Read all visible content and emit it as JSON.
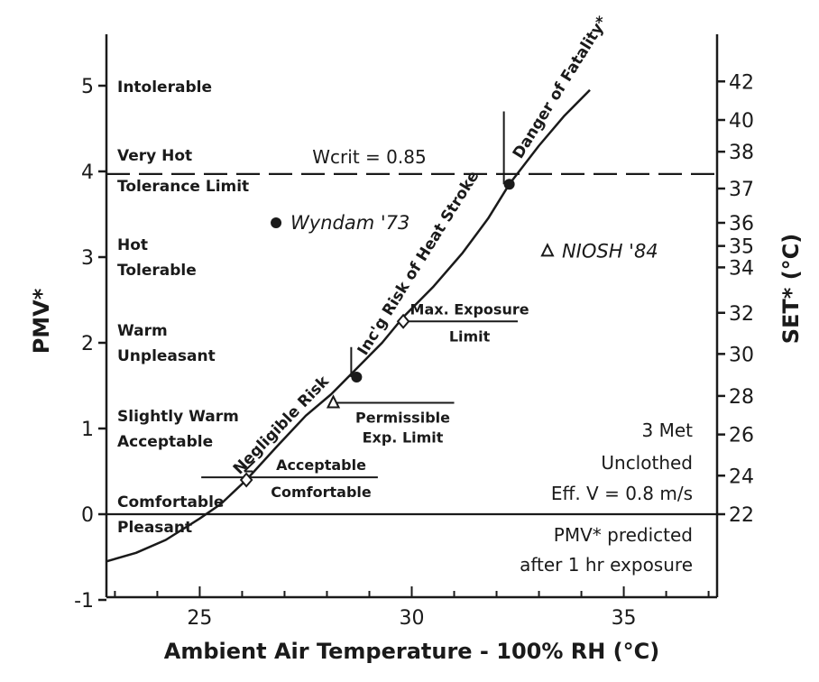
{
  "chart_data": {
    "type": "line",
    "xlabel": "Ambient Air Temperature - 100% RH (°C)",
    "ylabel": "PMV*",
    "y2label": "SET* (°C)",
    "xlim": [
      22.8,
      37.2
    ],
    "ylim": [
      -1,
      5.5
    ],
    "x_ticks": [
      25,
      30,
      35
    ],
    "y_ticks": [
      -1,
      0,
      1,
      2,
      3,
      4,
      5
    ],
    "y2_ticks": [
      {
        "label": "22",
        "pmv": 0.0
      },
      {
        "label": "24",
        "pmv": 0.45
      },
      {
        "label": "26",
        "pmv": 0.93
      },
      {
        "label": "28",
        "pmv": 1.38
      },
      {
        "label": "30",
        "pmv": 1.87
      },
      {
        "label": "32",
        "pmv": 2.35
      },
      {
        "label": "34",
        "pmv": 2.88
      },
      {
        "label": "35",
        "pmv": 3.13
      },
      {
        "label": "36",
        "pmv": 3.4
      },
      {
        "label": "37",
        "pmv": 3.8
      },
      {
        "label": "38",
        "pmv": 4.23
      },
      {
        "label": "40",
        "pmv": 4.6
      },
      {
        "label": "42",
        "pmv": 5.05
      }
    ],
    "series": [
      {
        "x": [
          22.8,
          23.5,
          24.2,
          25.0,
          25.5,
          26.1,
          26.8,
          27.5,
          28.1,
          28.7,
          29.3,
          29.8,
          30.5,
          31.2,
          31.8,
          32.3,
          33.0,
          33.6,
          34.2
        ],
        "y": [
          -0.55,
          -0.45,
          -0.3,
          -0.05,
          0.12,
          0.4,
          0.78,
          1.15,
          1.4,
          1.7,
          2.0,
          2.3,
          2.65,
          3.05,
          3.45,
          3.85,
          4.3,
          4.65,
          4.95
        ]
      }
    ],
    "hlines": [
      {
        "y": 0,
        "style": "solid"
      },
      {
        "y": 3.97,
        "style": "dashed",
        "label": "Wcrit = 0.85"
      }
    ],
    "markers": [
      {
        "x": 28.7,
        "y": 1.6,
        "shape": "filled-circle"
      },
      {
        "x": 32.3,
        "y": 3.85,
        "shape": "filled-circle"
      },
      {
        "x": 26.1,
        "y": 0.4,
        "shape": "open-diamond"
      },
      {
        "x": 28.15,
        "y": 1.3,
        "shape": "open-triangle"
      },
      {
        "x": 29.8,
        "y": 2.25,
        "shape": "open-diamond"
      },
      {
        "x": 26.8,
        "y": 3.4,
        "shape": "filled-circle",
        "label": "Wyndam '73"
      },
      {
        "x": 33.2,
        "y": 3.07,
        "shape": "open-triangle",
        "label": "NIOSH '84"
      }
    ],
    "limit_lines": [
      {
        "x1": 26.1,
        "x2": 29.2,
        "y": 0.43,
        "label_top": "Acceptable",
        "label_bottom": "Comfortable"
      },
      {
        "x1": 28.15,
        "x2": 31.0,
        "y": 1.3,
        "label": "Permissible Exp. Limit"
      },
      {
        "x1": 29.8,
        "x2": 32.5,
        "y": 2.25,
        "label_top": "Max. Exposure",
        "label_bottom": "Limit"
      }
    ],
    "zones": [
      {
        "y": 5,
        "lines": [
          "Intolerable"
        ]
      },
      {
        "y": 4,
        "lines": [
          "Very Hot",
          "Tolerance Limit"
        ]
      },
      {
        "y": 3,
        "lines": [
          "Hot",
          "Tolerable"
        ]
      },
      {
        "y": 2,
        "lines": [
          "Warm",
          "Unpleasant"
        ]
      },
      {
        "y": 1,
        "lines": [
          "Slightly Warm",
          "Acceptable"
        ]
      },
      {
        "y": 0,
        "lines": [
          "Comfortable",
          "Pleasant"
        ]
      }
    ],
    "curve_labels": [
      "Negligible Risk",
      "Inc'g Risk of Heat Stroke",
      "Danger of Fatality*"
    ],
    "notes": [
      "3 Met",
      "Unclothed",
      "Eff. V = 0.8 m/s",
      "PMV* predicted",
      "after 1 hr exposure"
    ]
  }
}
